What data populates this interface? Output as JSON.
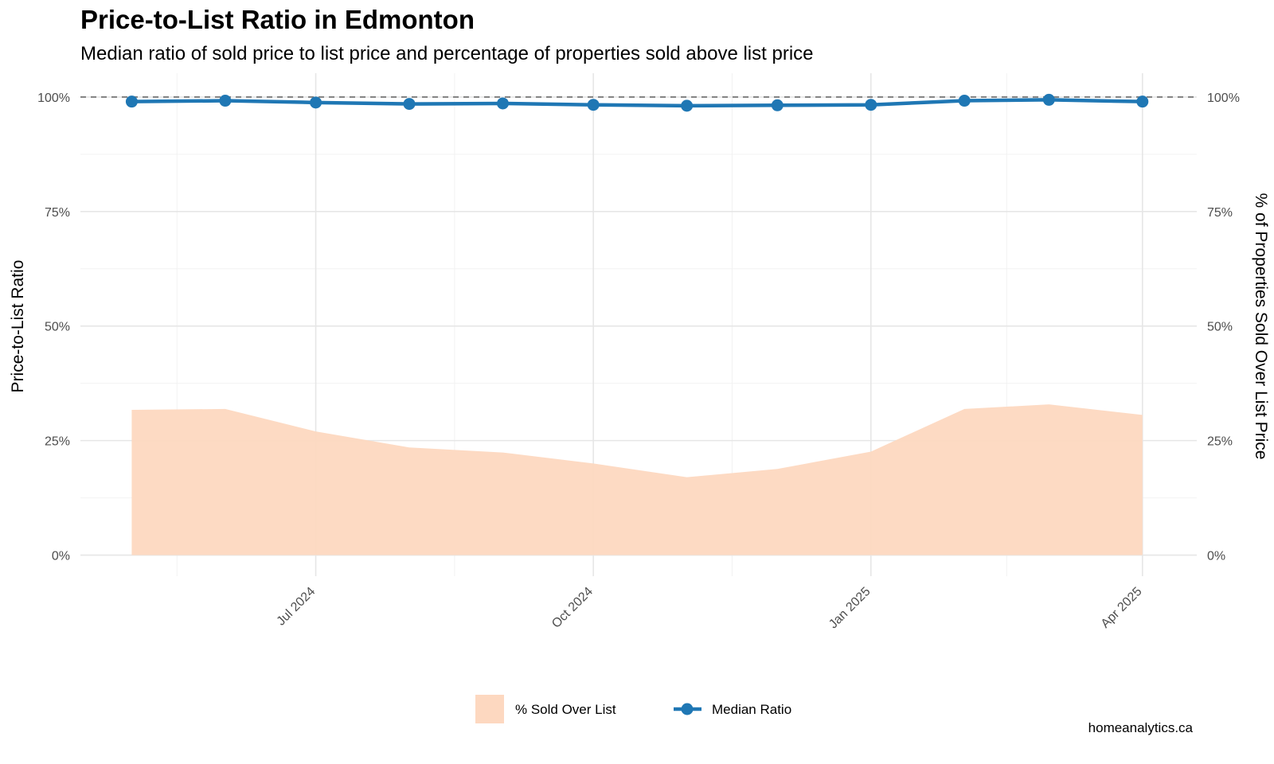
{
  "title": "Price-to-List Ratio in Edmonton",
  "subtitle": "Median ratio of sold price to list price and percentage of properties sold above list price",
  "caption": "homeanalytics.ca",
  "colors": {
    "line": "#1f77b4",
    "area": "#fdd8c0",
    "reference": "#808080",
    "grid_major": "#e6e6e6",
    "grid_minor": "#f2f2f2"
  },
  "chart_data": {
    "type": "line",
    "title": "Price-to-List Ratio in Edmonton",
    "subtitle": "Median ratio of sold price to list price and percentage of properties sold above list price",
    "ylabel": "Price-to-List Ratio",
    "y2label": "% of Properties Sold Over List Price",
    "xlabel": "",
    "x": [
      "2024-05-01",
      "2024-06-01",
      "2024-07-01",
      "2024-08-01",
      "2024-09-01",
      "2024-10-01",
      "2024-11-01",
      "2024-12-01",
      "2025-01-01",
      "2025-02-01",
      "2025-03-01",
      "2025-04-01"
    ],
    "x_ticks": [
      "Jul 2024",
      "Oct 2024",
      "Jan 2025",
      "Apr 2025"
    ],
    "x_tick_dates": [
      "2024-07-01",
      "2024-10-01",
      "2025-01-01",
      "2025-04-01"
    ],
    "x_range": [
      "2024-04-14",
      "2025-04-19"
    ],
    "y_ticks": [
      "0%",
      "25%",
      "50%",
      "75%",
      "100%"
    ],
    "y_tick_values": [
      0,
      25,
      50,
      75,
      100
    ],
    "ylim": [
      -4.6,
      105.2
    ],
    "reference_line": 100,
    "series": [
      {
        "name": "% Sold Over List",
        "kind": "area",
        "values": [
          31.7,
          31.9,
          27.0,
          23.5,
          22.4,
          20.0,
          17.0,
          18.8,
          22.6,
          31.9,
          32.9,
          30.6
        ]
      },
      {
        "name": "Median Ratio",
        "kind": "line",
        "values": [
          99.0,
          99.2,
          98.8,
          98.5,
          98.6,
          98.3,
          98.1,
          98.2,
          98.3,
          99.2,
          99.4,
          99.0
        ]
      }
    ],
    "legend": [
      "% Sold Over List",
      "Median Ratio"
    ],
    "legend_position": "bottom",
    "grid": true
  }
}
